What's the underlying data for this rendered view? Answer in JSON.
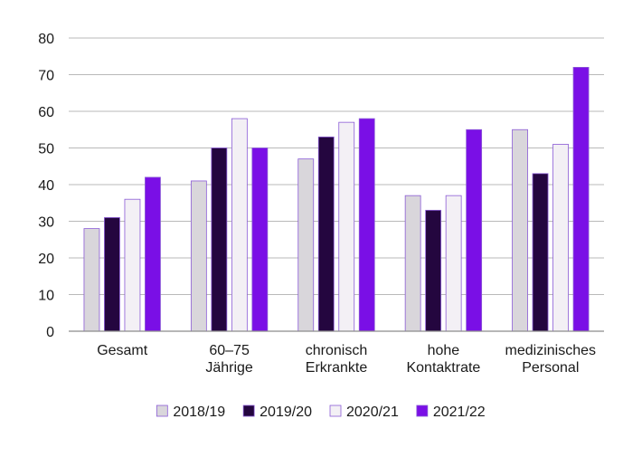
{
  "chart_data": {
    "type": "bar",
    "categories": [
      [
        "Gesamt"
      ],
      [
        "60–75",
        "Jährige"
      ],
      [
        "chronisch",
        "Erkrankte"
      ],
      [
        "hohe",
        "Kontaktrate"
      ],
      [
        "medizinisches",
        "Personal"
      ]
    ],
    "series": [
      {
        "name": "2018/19",
        "color": "#d9d6db",
        "values": [
          28,
          41,
          47,
          37,
          55
        ]
      },
      {
        "name": "2019/20",
        "color": "#24063f",
        "values": [
          31,
          50,
          53,
          33,
          43
        ]
      },
      {
        "name": "2020/21",
        "color": "#f3f0f5",
        "values": [
          36,
          58,
          57,
          37,
          51
        ]
      },
      {
        "name": "2021/22",
        "color": "#7a0fe6",
        "values": [
          42,
          50,
          58,
          55,
          72
        ]
      }
    ],
    "ylim": [
      0,
      80
    ],
    "yticks": [
      0,
      10,
      20,
      30,
      40,
      50,
      60,
      70,
      80
    ],
    "grid": true,
    "legend": "bottom",
    "bar_outline_color": "#8a5bd6"
  }
}
